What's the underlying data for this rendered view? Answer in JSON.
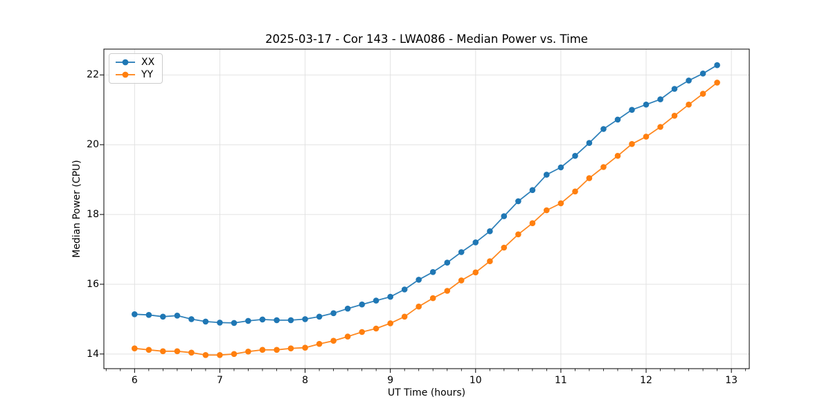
{
  "chart_data": {
    "type": "line",
    "title": "2025-03-17 - Cor 143 - LWA086 - Median Power vs. Time",
    "xlabel": "UT Time (hours)",
    "ylabel": "Median Power (CPU)",
    "xlim": [
      5.64,
      13.21
    ],
    "ylim": [
      13.58,
      22.74
    ],
    "x_ticks": [
      6,
      7,
      8,
      9,
      10,
      11,
      12,
      13
    ],
    "y_ticks": [
      14,
      16,
      18,
      20,
      22
    ],
    "x_minor_step": 0.166667,
    "grid": true,
    "grid_color": "#e2e2e2",
    "legend_position": "upper-left",
    "x": [
      6.0,
      6.167,
      6.333,
      6.5,
      6.667,
      6.833,
      7.0,
      7.167,
      7.333,
      7.5,
      7.667,
      7.833,
      8.0,
      8.167,
      8.333,
      8.5,
      8.667,
      8.833,
      9.0,
      9.167,
      9.333,
      9.5,
      9.667,
      9.833,
      10.0,
      10.167,
      10.333,
      10.5,
      10.667,
      10.833,
      11.0,
      11.167,
      11.333,
      11.5,
      11.667,
      11.833,
      12.0,
      12.167,
      12.333,
      12.5,
      12.667,
      12.833
    ],
    "series": [
      {
        "name": "XX",
        "color": "#1f77b4",
        "values": [
          15.14,
          15.12,
          15.07,
          15.1,
          15.0,
          14.93,
          14.9,
          14.89,
          14.95,
          14.99,
          14.97,
          14.97,
          15.0,
          15.07,
          15.17,
          15.3,
          15.42,
          15.53,
          15.64,
          15.85,
          16.13,
          16.35,
          16.62,
          16.92,
          17.2,
          17.52,
          17.95,
          18.38,
          18.7,
          19.14,
          19.35,
          19.68,
          20.05,
          20.45,
          20.72,
          21.0,
          21.15,
          21.3,
          21.6,
          21.84,
          22.04,
          22.28
        ]
      },
      {
        "name": "YY",
        "color": "#ff7f0e",
        "values": [
          14.16,
          14.12,
          14.08,
          14.08,
          14.04,
          13.97,
          13.97,
          14.0,
          14.07,
          14.12,
          14.12,
          14.16,
          14.18,
          14.29,
          14.38,
          14.5,
          14.63,
          14.73,
          14.88,
          15.07,
          15.36,
          15.6,
          15.81,
          16.11,
          16.34,
          16.66,
          17.05,
          17.43,
          17.75,
          18.12,
          18.32,
          18.66,
          19.04,
          19.36,
          19.68,
          20.02,
          20.23,
          20.51,
          20.83,
          21.15,
          21.46,
          21.78
        ]
      }
    ]
  }
}
